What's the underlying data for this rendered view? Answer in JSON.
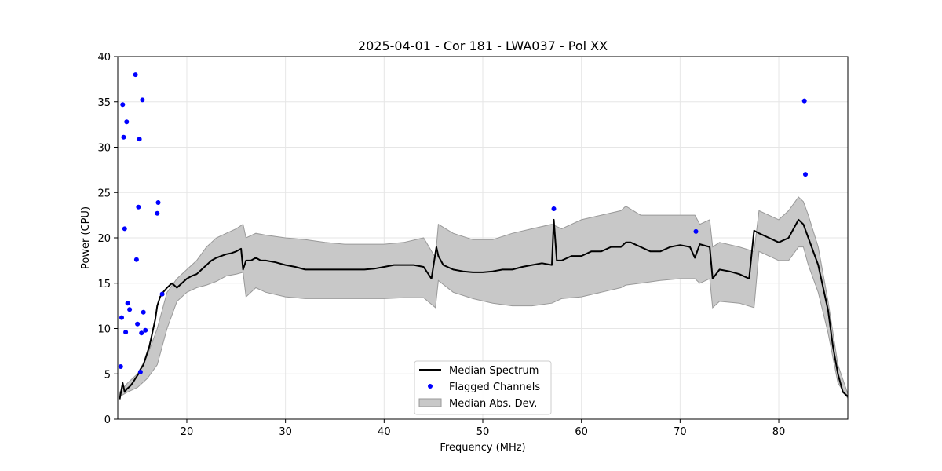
{
  "chart_data": {
    "type": "line",
    "title": "2025-04-01 - Cor 181 - LWA037 - Pol XX",
    "xlabel": "Frequency (MHz)",
    "ylabel": "Power (CPU)",
    "xlim": [
      13,
      87
    ],
    "ylim": [
      0,
      40
    ],
    "xticks": [
      20,
      30,
      40,
      50,
      60,
      70,
      80
    ],
    "yticks": [
      0,
      5,
      10,
      15,
      20,
      25,
      30,
      35,
      40
    ],
    "grid": true,
    "legend_position": "lower-center",
    "colors": {
      "median": "#000000",
      "flagged": "#0000ff",
      "band": "#c8c8c8",
      "band_edge": "#999999"
    },
    "legend": [
      {
        "label": "Median Spectrum",
        "kind": "line"
      },
      {
        "label": "Flagged Channels",
        "kind": "dot"
      },
      {
        "label": "Median Abs. Dev.",
        "kind": "patch"
      }
    ],
    "series": [
      {
        "name": "Median Spectrum",
        "x": [
          13.2,
          13.5,
          13.7,
          13.9,
          14.1,
          14.3,
          14.5,
          14.8,
          15.1,
          15.3,
          15.6,
          15.9,
          16.2,
          16.5,
          16.8,
          17.0,
          17.3,
          17.6,
          18.0,
          18.5,
          19.0,
          19.5,
          20.0,
          20.5,
          21.0,
          21.5,
          22.0,
          22.5,
          23.0,
          23.5,
          24.0,
          24.5,
          25.0,
          25.5,
          25.7,
          26.0,
          26.5,
          27.0,
          27.5,
          28.0,
          29.0,
          30.0,
          31.0,
          32.0,
          33.0,
          34.0,
          35.0,
          36.0,
          37.0,
          38.0,
          39.0,
          40.0,
          41.0,
          42.0,
          43.0,
          44.0,
          44.8,
          45.3,
          45.5,
          46.0,
          47.0,
          48.0,
          49.0,
          50.0,
          51.0,
          52.0,
          53.0,
          54.0,
          55.0,
          56.0,
          57.0,
          57.2,
          57.5,
          58.0,
          59.0,
          60.0,
          61.0,
          62.0,
          63.0,
          64.0,
          64.5,
          65.0,
          66.0,
          67.0,
          68.0,
          69.0,
          70.0,
          71.0,
          71.5,
          72.0,
          73.0,
          73.3,
          74.0,
          75.0,
          76.0,
          77.0,
          77.5,
          78.0,
          79.0,
          80.0,
          81.0,
          82.0,
          82.5,
          83.0,
          84.0,
          85.0,
          85.5,
          86.0,
          86.5,
          87.0
        ],
        "y": [
          2.2,
          4.0,
          3.0,
          3.3,
          3.5,
          3.7,
          4.0,
          4.5,
          5.0,
          5.5,
          6.0,
          7.0,
          8.0,
          9.5,
          11.0,
          12.5,
          13.5,
          14.0,
          14.5,
          15.0,
          14.5,
          15.0,
          15.5,
          15.8,
          16.0,
          16.5,
          17.0,
          17.5,
          17.8,
          18.0,
          18.2,
          18.3,
          18.5,
          18.8,
          16.5,
          17.5,
          17.5,
          17.8,
          17.5,
          17.5,
          17.3,
          17.0,
          16.8,
          16.5,
          16.5,
          16.5,
          16.5,
          16.5,
          16.5,
          16.5,
          16.6,
          16.8,
          17.0,
          17.0,
          17.0,
          16.8,
          15.5,
          19.0,
          18.0,
          17.0,
          16.5,
          16.3,
          16.2,
          16.2,
          16.3,
          16.5,
          16.5,
          16.8,
          17.0,
          17.2,
          17.0,
          22.0,
          17.5,
          17.5,
          18.0,
          18.0,
          18.5,
          18.5,
          19.0,
          19.0,
          19.5,
          19.5,
          19.0,
          18.5,
          18.5,
          19.0,
          19.2,
          19.0,
          17.8,
          19.3,
          19.0,
          15.5,
          16.5,
          16.3,
          16.0,
          15.5,
          20.8,
          20.5,
          20.0,
          19.5,
          20.0,
          22.0,
          21.5,
          20.0,
          17.0,
          12.0,
          8.0,
          5.0,
          3.0,
          2.5
        ]
      },
      {
        "name": "Flagged Channels",
        "x": [
          13.3,
          13.4,
          13.5,
          13.6,
          13.7,
          13.8,
          13.9,
          14.0,
          14.2,
          14.8,
          14.9,
          15.0,
          15.1,
          15.2,
          15.3,
          15.4,
          15.5,
          15.6,
          15.8,
          17.0,
          17.1,
          17.5,
          57.2,
          71.6,
          82.6,
          82.7
        ],
        "y": [
          5.8,
          11.2,
          34.7,
          31.1,
          21.0,
          9.6,
          32.8,
          12.8,
          12.1,
          38.0,
          17.6,
          10.5,
          23.4,
          30.9,
          5.2,
          9.5,
          35.2,
          11.8,
          9.8,
          22.7,
          23.9,
          13.8,
          23.2,
          20.7,
          35.1,
          27.0
        ]
      }
    ],
    "band": {
      "name": "Median Abs. Dev.",
      "x": [
        13.2,
        14.0,
        15.0,
        16.0,
        17.0,
        18.0,
        19.0,
        20.0,
        21.0,
        22.0,
        23.0,
        24.0,
        25.0,
        25.7,
        26.0,
        27.0,
        28.0,
        30.0,
        32.0,
        34.0,
        36.0,
        38.0,
        40.0,
        42.0,
        44.0,
        45.2,
        45.5,
        47.0,
        49.0,
        51.0,
        53.0,
        55.0,
        57.0,
        58.0,
        60.0,
        62.0,
        64.0,
        64.5,
        66.0,
        68.0,
        70.0,
        71.5,
        72.0,
        73.0,
        73.3,
        74.0,
        76.0,
        77.5,
        78.0,
        80.0,
        81.0,
        82.0,
        82.5,
        83.0,
        84.0,
        85.0,
        86.0,
        87.0
      ],
      "upper": [
        3.0,
        4.0,
        5.0,
        7.0,
        10.0,
        14.0,
        15.5,
        16.5,
        17.5,
        19.0,
        20.0,
        20.5,
        21.0,
        21.5,
        20.0,
        20.5,
        20.3,
        20.0,
        19.8,
        19.5,
        19.3,
        19.3,
        19.3,
        19.5,
        20.0,
        17.8,
        21.5,
        20.5,
        19.8,
        19.8,
        20.5,
        21.0,
        21.5,
        21.0,
        22.0,
        22.5,
        23.0,
        23.5,
        22.5,
        22.5,
        22.5,
        22.5,
        21.5,
        22.0,
        19.0,
        19.5,
        19.0,
        18.5,
        23.0,
        22.0,
        23.0,
        24.5,
        24.0,
        22.5,
        19.0,
        13.0,
        6.0,
        2.8
      ],
      "lower": [
        2.5,
        3.0,
        3.5,
        4.5,
        6.0,
        10.0,
        13.0,
        14.0,
        14.5,
        14.8,
        15.2,
        15.8,
        16.0,
        16.2,
        13.5,
        14.5,
        14.0,
        13.5,
        13.3,
        13.3,
        13.3,
        13.3,
        13.3,
        13.4,
        13.4,
        12.3,
        15.3,
        14.0,
        13.3,
        12.8,
        12.5,
        12.5,
        12.8,
        13.3,
        13.5,
        14.0,
        14.5,
        14.8,
        15.0,
        15.3,
        15.5,
        15.5,
        15.0,
        15.5,
        12.3,
        13.0,
        12.8,
        12.3,
        18.5,
        17.5,
        17.5,
        19.0,
        19.0,
        17.0,
        14.0,
        9.5,
        4.0,
        2.3
      ]
    }
  }
}
